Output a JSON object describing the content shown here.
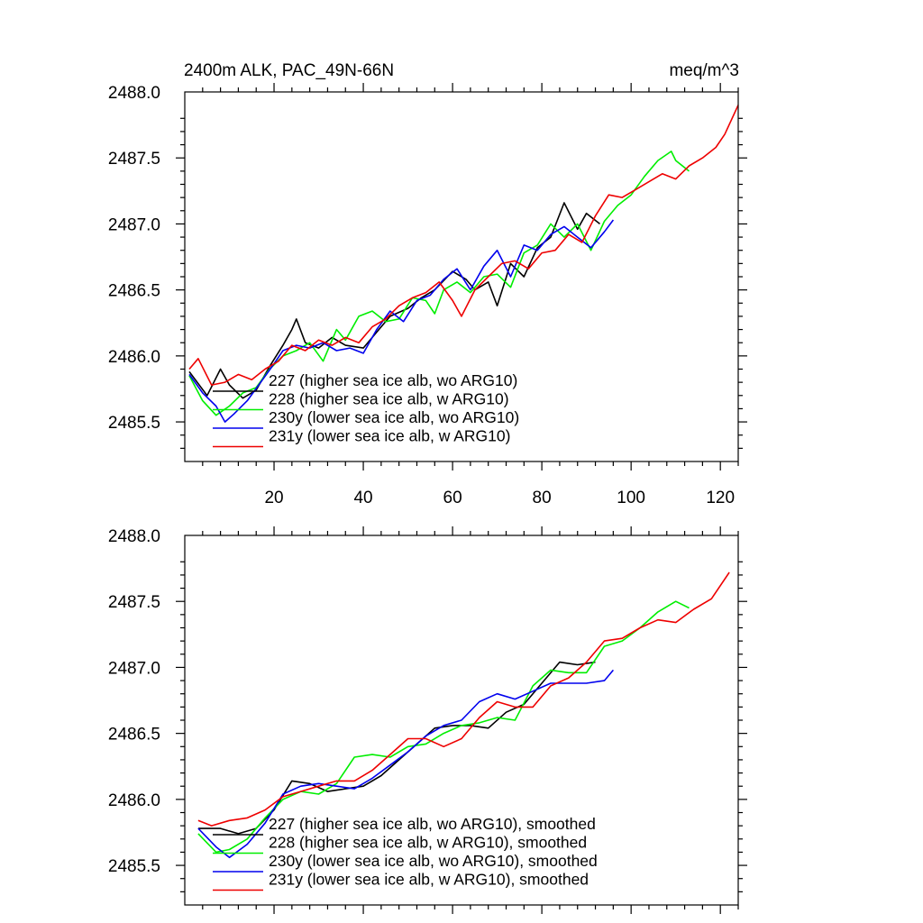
{
  "chart_data": [
    {
      "type": "line",
      "title": "2400m ALK, PAC_49N-66N",
      "units": "meq/m^3",
      "xlabel": "",
      "ylabel": "",
      "xlim": [
        0,
        124
      ],
      "ylim": [
        2485.2,
        2488.0
      ],
      "xticks": [
        20,
        40,
        60,
        80,
        100,
        120
      ],
      "yticks": [
        2485.5,
        2486.0,
        2486.5,
        2487.0,
        2487.5,
        2488.0
      ],
      "ytick_labels": [
        "2485.5",
        "2486.0",
        "2486.5",
        "2487.0",
        "2487.5",
        "2488.0"
      ],
      "xtick_labels_visible": true,
      "legend_position": "bottom-left",
      "series": [
        {
          "name": "227 (higher sea ice alb, wo ARG10)",
          "color": "#000000",
          "x": [
            1,
            5,
            8,
            10,
            13,
            16,
            19,
            22,
            24,
            25,
            27,
            30,
            33,
            36,
            40,
            43,
            46,
            50,
            53,
            56,
            60,
            63,
            65,
            68,
            70,
            73,
            76,
            79,
            82,
            85,
            88,
            90,
            93
          ],
          "y": [
            2485.88,
            2485.7,
            2485.9,
            2485.78,
            2485.68,
            2485.74,
            2485.92,
            2486.08,
            2486.2,
            2486.28,
            2486.1,
            2486.06,
            2486.14,
            2486.08,
            2486.06,
            2486.18,
            2486.3,
            2486.36,
            2486.44,
            2486.5,
            2486.64,
            2486.58,
            2486.5,
            2486.56,
            2486.38,
            2486.7,
            2486.6,
            2486.82,
            2486.9,
            2487.16,
            2486.96,
            2487.08,
            2487.0
          ]
        },
        {
          "name": "228 (higher sea ice alb, w ARG10)",
          "color": "#00ee00",
          "x": [
            1,
            4,
            7,
            10,
            13,
            16,
            19,
            22,
            25,
            28,
            31,
            34,
            36,
            39,
            42,
            45,
            48,
            51,
            54,
            56,
            58,
            61,
            64,
            67,
            70,
            73,
            76,
            79,
            82,
            85,
            88,
            91,
            94,
            97,
            100,
            103,
            106,
            109,
            110,
            113
          ],
          "y": [
            2485.85,
            2485.66,
            2485.55,
            2485.62,
            2485.72,
            2485.76,
            2485.9,
            2486.0,
            2486.04,
            2486.1,
            2485.96,
            2486.2,
            2486.12,
            2486.3,
            2486.34,
            2486.26,
            2486.28,
            2486.44,
            2486.42,
            2486.32,
            2486.5,
            2486.56,
            2486.48,
            2486.6,
            2486.62,
            2486.52,
            2486.78,
            2486.84,
            2487.0,
            2486.9,
            2487.0,
            2486.8,
            2487.02,
            2487.14,
            2487.22,
            2487.36,
            2487.48,
            2487.55,
            2487.48,
            2487.4
          ]
        },
        {
          "name": "230y (lower sea ice alb, wo ARG10)",
          "color": "#0000ee",
          "x": [
            1,
            4,
            7,
            9,
            11,
            14,
            17,
            20,
            22,
            25,
            28,
            31,
            34,
            37,
            40,
            43,
            46,
            49,
            52,
            55,
            58,
            61,
            64,
            67,
            70,
            73,
            76,
            79,
            82,
            85,
            88,
            91,
            94,
            96
          ],
          "y": [
            2485.86,
            2485.72,
            2485.62,
            2485.5,
            2485.56,
            2485.66,
            2485.8,
            2485.94,
            2486.04,
            2486.08,
            2486.06,
            2486.1,
            2486.04,
            2486.06,
            2486.02,
            2486.2,
            2486.34,
            2486.26,
            2486.42,
            2486.46,
            2486.58,
            2486.66,
            2486.5,
            2486.68,
            2486.8,
            2486.6,
            2486.84,
            2486.8,
            2486.92,
            2486.98,
            2486.9,
            2486.82,
            2486.94,
            2487.03
          ]
        },
        {
          "name": "231y (lower sea ice alb, w ARG10)",
          "color": "#ee0000",
          "x": [
            1,
            3,
            6,
            9,
            12,
            15,
            18,
            21,
            24,
            27,
            30,
            33,
            36,
            39,
            42,
            45,
            48,
            51,
            54,
            57,
            60,
            62,
            65,
            68,
            71,
            74,
            77,
            80,
            83,
            86,
            89,
            92,
            95,
            98,
            101,
            104,
            107,
            110,
            113,
            116,
            119,
            121,
            124
          ],
          "y": [
            2485.9,
            2485.98,
            2485.78,
            2485.8,
            2485.86,
            2485.82,
            2485.9,
            2485.96,
            2486.08,
            2486.04,
            2486.12,
            2486.08,
            2486.14,
            2486.1,
            2486.22,
            2486.28,
            2486.38,
            2486.44,
            2486.48,
            2486.56,
            2486.42,
            2486.3,
            2486.5,
            2486.6,
            2486.7,
            2486.72,
            2486.66,
            2486.78,
            2486.8,
            2486.92,
            2486.86,
            2487.06,
            2487.22,
            2487.2,
            2487.26,
            2487.32,
            2487.38,
            2487.34,
            2487.44,
            2487.5,
            2487.58,
            2487.68,
            2487.9
          ]
        }
      ]
    },
    {
      "type": "line",
      "title": "",
      "units": "",
      "xlabel": "",
      "ylabel": "",
      "xlim": [
        0,
        124
      ],
      "ylim": [
        2485.2,
        2488.0
      ],
      "xticks": [
        20,
        40,
        60,
        80,
        100,
        120
      ],
      "yticks": [
        2485.5,
        2486.0,
        2486.5,
        2487.0,
        2487.5,
        2488.0
      ],
      "ytick_labels": [
        "2485.5",
        "2486.0",
        "2486.5",
        "2487.0",
        "2487.5",
        "2488.0"
      ],
      "xtick_labels_visible": false,
      "legend_position": "bottom-left",
      "series": [
        {
          "name": "227 (higher sea ice alb, wo ARG10), smoothed",
          "color": "#000000",
          "x": [
            3,
            8,
            12,
            16,
            20,
            24,
            28,
            32,
            36,
            40,
            44,
            48,
            52,
            56,
            60,
            64,
            68,
            72,
            76,
            80,
            84,
            88,
            92
          ],
          "y": [
            2485.78,
            2485.78,
            2485.74,
            2485.78,
            2485.92,
            2486.14,
            2486.12,
            2486.06,
            2486.08,
            2486.1,
            2486.18,
            2486.3,
            2486.42,
            2486.54,
            2486.56,
            2486.56,
            2486.54,
            2486.66,
            2486.72,
            2486.88,
            2487.04,
            2487.02,
            2487.04
          ]
        },
        {
          "name": "228 (higher sea ice alb, w ARG10), smoothed",
          "color": "#00ee00",
          "x": [
            3,
            7,
            10,
            14,
            18,
            22,
            26,
            30,
            34,
            38,
            42,
            46,
            50,
            54,
            58,
            62,
            66,
            70,
            74,
            78,
            82,
            86,
            90,
            94,
            98,
            102,
            106,
            110,
            113
          ],
          "y": [
            2485.74,
            2485.6,
            2485.62,
            2485.7,
            2485.86,
            2486.0,
            2486.06,
            2486.04,
            2486.12,
            2486.32,
            2486.34,
            2486.32,
            2486.4,
            2486.42,
            2486.5,
            2486.56,
            2486.58,
            2486.62,
            2486.6,
            2486.86,
            2486.98,
            2486.96,
            2486.96,
            2487.16,
            2487.2,
            2487.3,
            2487.42,
            2487.5,
            2487.45
          ]
        },
        {
          "name": "230y (lower sea ice alb, wo ARG10), smoothed",
          "color": "#0000ee",
          "x": [
            3,
            7,
            10,
            14,
            18,
            22,
            26,
            30,
            34,
            38,
            42,
            46,
            50,
            54,
            58,
            62,
            66,
            70,
            74,
            78,
            82,
            86,
            90,
            94,
            96
          ],
          "y": [
            2485.78,
            2485.64,
            2485.56,
            2485.66,
            2485.82,
            2486.04,
            2486.1,
            2486.12,
            2486.1,
            2486.08,
            2486.16,
            2486.26,
            2486.36,
            2486.48,
            2486.56,
            2486.6,
            2486.74,
            2486.8,
            2486.76,
            2486.82,
            2486.88,
            2486.88,
            2486.88,
            2486.9,
            2486.98
          ]
        },
        {
          "name": "231y (lower sea ice alb, w ARG10), smoothed",
          "color": "#ee0000",
          "x": [
            3,
            6,
            10,
            14,
            18,
            22,
            26,
            30,
            34,
            38,
            42,
            46,
            50,
            54,
            58,
            62,
            66,
            70,
            74,
            78,
            82,
            86,
            90,
            94,
            98,
            102,
            106,
            110,
            114,
            118,
            122
          ],
          "y": [
            2485.84,
            2485.8,
            2485.84,
            2485.86,
            2485.92,
            2486.02,
            2486.06,
            2486.1,
            2486.14,
            2486.14,
            2486.22,
            2486.34,
            2486.46,
            2486.46,
            2486.4,
            2486.46,
            2486.62,
            2486.74,
            2486.7,
            2486.7,
            2486.86,
            2486.92,
            2487.04,
            2487.2,
            2487.22,
            2487.3,
            2487.36,
            2487.34,
            2487.44,
            2487.52,
            2487.72
          ]
        }
      ]
    }
  ]
}
